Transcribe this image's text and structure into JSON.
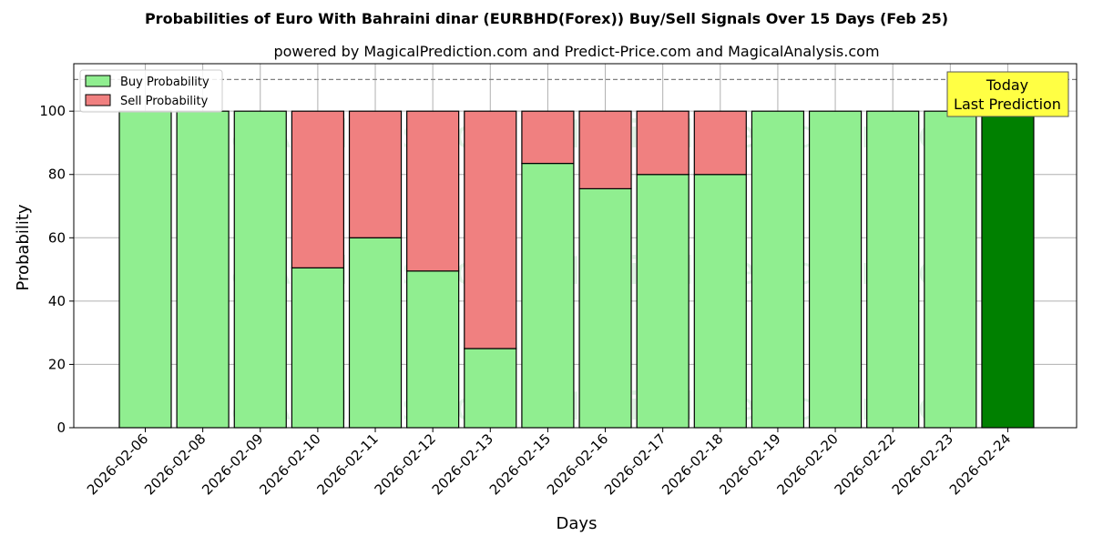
{
  "chart_data": {
    "type": "bar",
    "stacked": true,
    "title": "Probabilities of Euro With Bahraini dinar (EURBHD(Forex)) Buy/Sell Signals Over 15 Days (Feb 25)",
    "subtitle": "powered by MagicalPrediction.com and Predict-Price.com and MagicalAnalysis.com",
    "xlabel": "Days",
    "ylabel": "Probability",
    "ylim": [
      0,
      115
    ],
    "yticks": [
      0,
      20,
      40,
      60,
      80,
      100
    ],
    "grid": true,
    "legend_position": "top-left",
    "reference_line": 110,
    "categories": [
      "2026-02-06",
      "2026-02-08",
      "2026-02-09",
      "2026-02-10",
      "2026-02-11",
      "2026-02-12",
      "2026-02-13",
      "2026-02-15",
      "2026-02-16",
      "2026-02-17",
      "2026-02-18",
      "2026-02-19",
      "2026-02-20",
      "2026-02-22",
      "2026-02-23",
      "2026-02-24"
    ],
    "series": [
      {
        "name": "Buy Probability",
        "color": "#90ee90",
        "values": [
          100,
          100,
          100,
          50.5,
          60,
          49.5,
          25,
          83.5,
          75.5,
          80,
          80,
          100,
          100,
          100,
          100,
          100
        ]
      },
      {
        "name": "Sell Probability",
        "color": "#f08080",
        "values": [
          0,
          0,
          0,
          49.5,
          40,
          50.5,
          75,
          16.5,
          24.5,
          20,
          20,
          0,
          0,
          0,
          0,
          0
        ]
      }
    ],
    "highlight": {
      "index": 15,
      "color": "#008000",
      "label_lines": [
        "Today",
        "Last Prediction"
      ],
      "box_color": "#ffff44"
    },
    "watermarks": [
      "MagicalAnalysis.com",
      "MagicalPrediction.com"
    ]
  }
}
